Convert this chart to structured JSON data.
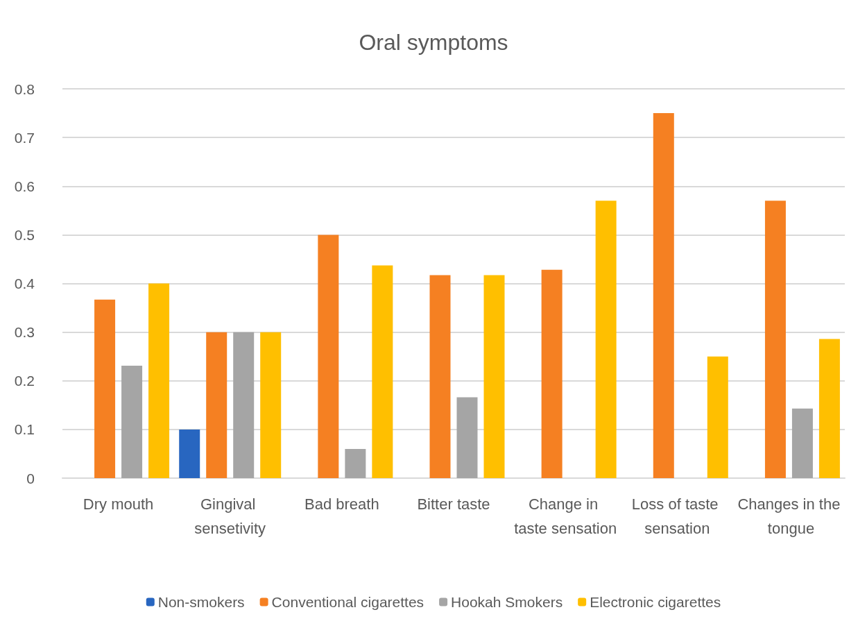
{
  "chart_data": {
    "type": "bar",
    "title": "Oral symptoms",
    "categories": [
      "Dry mouth",
      "Gingival sensetivity",
      "Bad breath",
      "Bitter taste",
      "Change in taste sensation",
      "Loss of taste sensation",
      "Changes in the tongue"
    ],
    "series": [
      {
        "name": "Non-smokers",
        "color": "#2866c0",
        "values": [
          0,
          0.1,
          0,
          0,
          0,
          0,
          0
        ]
      },
      {
        "name": "Conventional cigarettes",
        "color": "#f58022",
        "values": [
          0.367,
          0.3,
          0.5,
          0.417,
          0.428,
          0.75,
          0.57
        ]
      },
      {
        "name": "Hookah Smokers",
        "color": "#a5a5a5",
        "values": [
          0.231,
          0.3,
          0.06,
          0.166,
          0,
          0,
          0.143
        ]
      },
      {
        "name": "Electronic cigarettes",
        "color": "#ffbf00",
        "values": [
          0.4,
          0.3,
          0.437,
          0.417,
          0.57,
          0.25,
          0.286
        ]
      }
    ],
    "ylim": [
      0,
      0.8
    ],
    "yticks": [
      0,
      0.1,
      0.2,
      0.3,
      0.4,
      0.5,
      0.6,
      0.7,
      0.8
    ],
    "grid": "y",
    "legend": "bottom"
  }
}
